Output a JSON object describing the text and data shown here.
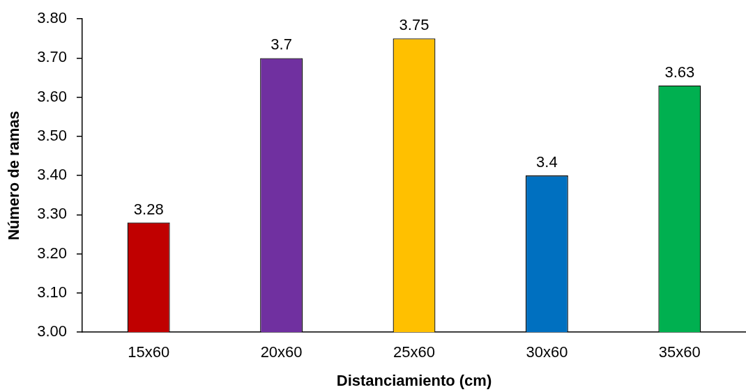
{
  "chart_data": {
    "type": "bar",
    "xlabel": "Distanciamiento (cm)",
    "ylabel": "Número de ramas",
    "categories": [
      "15x60",
      "20x60",
      "25x60",
      "30x60",
      "35x60"
    ],
    "values": [
      3.28,
      3.7,
      3.75,
      3.4,
      3.63
    ],
    "colors": [
      "#c00000",
      "#7030a0",
      "#ffc000",
      "#0070c0",
      "#00b050"
    ],
    "ylim": [
      3,
      3.8
    ],
    "yticks": [
      {
        "value": 3,
        "label": "3.00"
      },
      {
        "value": 3.1,
        "label": "3.10"
      },
      {
        "value": 3.2,
        "label": "3.20"
      },
      {
        "value": 3.3,
        "label": "3.30"
      },
      {
        "value": 3.4,
        "label": "3.40"
      },
      {
        "value": 3.5,
        "label": "3.50"
      },
      {
        "value": 3.6,
        "label": "3.60"
      },
      {
        "value": 3.7,
        "label": "3.70"
      },
      {
        "value": 3.8,
        "label": "3.80"
      }
    ],
    "data_labels": true,
    "grid": false,
    "legend": false
  }
}
